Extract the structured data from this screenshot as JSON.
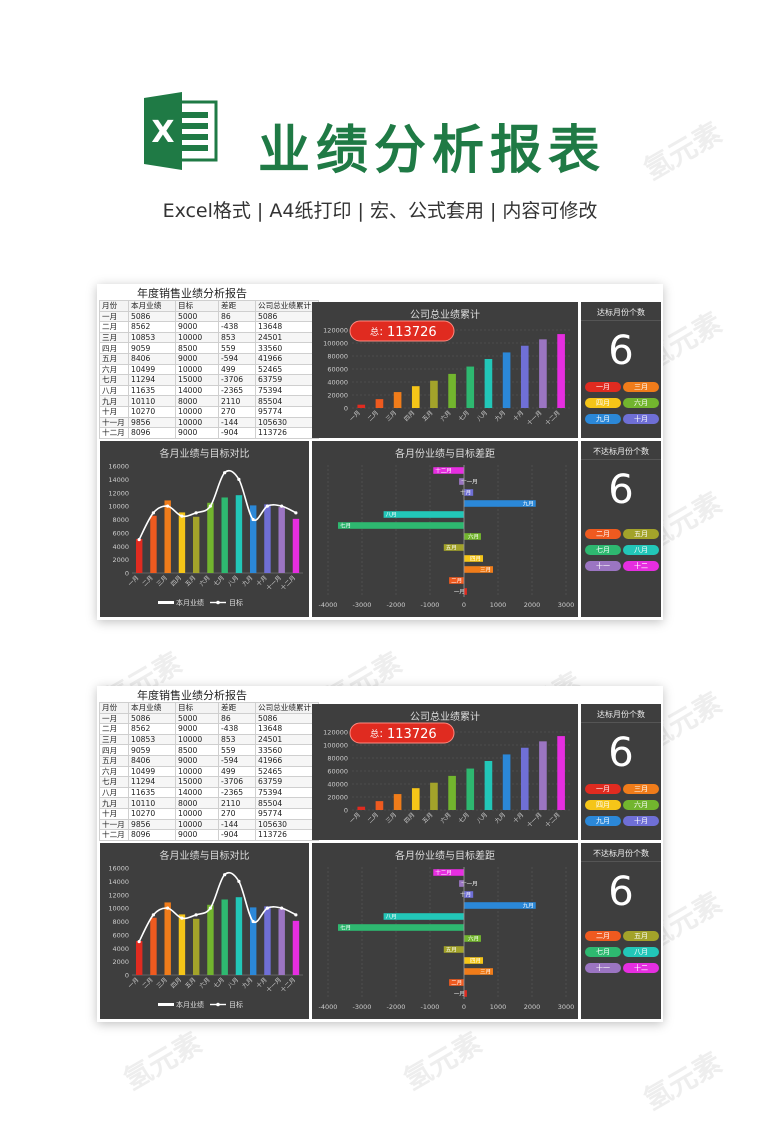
{
  "header": {
    "title": "业绩分析报表",
    "subtitle": "Excel格式 |  A4纸打印 | 宏、公式套用 | 内容可修改",
    "logo_letter": "X"
  },
  "watermark": "氢元素",
  "sheet": {
    "title": "年度销售业绩分析报告",
    "columns": [
      "月份",
      "本月业绩",
      "目标",
      "差距",
      "公司总业绩累计"
    ],
    "rows": [
      [
        "一月",
        "5086",
        "5000",
        "86",
        "5086"
      ],
      [
        "二月",
        "8562",
        "9000",
        "-438",
        "13648"
      ],
      [
        "三月",
        "10853",
        "10000",
        "853",
        "24501"
      ],
      [
        "四月",
        "9059",
        "8500",
        "559",
        "33560"
      ],
      [
        "五月",
        "8406",
        "9000",
        "-594",
        "41966"
      ],
      [
        "六月",
        "10499",
        "10000",
        "499",
        "52465"
      ],
      [
        "七月",
        "11294",
        "15000",
        "-3706",
        "63759"
      ],
      [
        "八月",
        "11635",
        "14000",
        "-2365",
        "75394"
      ],
      [
        "九月",
        "10110",
        "8000",
        "2110",
        "85504"
      ],
      [
        "十月",
        "10270",
        "10000",
        "270",
        "95774"
      ],
      [
        "十一月",
        "9856",
        "10000",
        "-144",
        "105630"
      ],
      [
        "十二月",
        "8096",
        "9000",
        "-904",
        "113726"
      ]
    ],
    "total_label": "总：",
    "total_value": "113726",
    "reached_title": "达标月份个数",
    "reached_count": "6",
    "reached_months": [
      "一月",
      "三月",
      "四月",
      "六月",
      "九月",
      "十月"
    ],
    "missed_title": "不达标月份个数",
    "missed_count": "6",
    "missed_months": [
      "二月",
      "五月",
      "七月",
      "八月",
      "十一",
      "十二"
    ]
  },
  "colors": {
    "panel": "#3e3e3e",
    "accent_green": "#1f7a45",
    "total_badge": "#e02b20",
    "months": [
      "#e02b20",
      "#ef5a1f",
      "#f07c1a",
      "#f5c518",
      "#a3a32a",
      "#72b52e",
      "#2eb870",
      "#22c7b8",
      "#2b88d8",
      "#6f6fd6",
      "#9b75c2",
      "#e62ee0"
    ]
  },
  "chart_data": [
    {
      "type": "bar",
      "title": "公司总业绩累计",
      "categories": [
        "一月",
        "二月",
        "三月",
        "四月",
        "五月",
        "六月",
        "七月",
        "八月",
        "九月",
        "十月",
        "十一月",
        "十二月"
      ],
      "values": [
        5086,
        13648,
        24501,
        33560,
        41966,
        52465,
        63759,
        75394,
        85504,
        95774,
        105630,
        113726
      ],
      "ylim": [
        0,
        120000
      ],
      "yticks": [
        "0",
        "20000",
        "40000",
        "60000",
        "80000",
        "100000",
        "120000"
      ],
      "grid": true
    },
    {
      "type": "bar",
      "title": "各月业绩与目标对比",
      "categories": [
        "一月",
        "二月",
        "三月",
        "四月",
        "五月",
        "六月",
        "七月",
        "八月",
        "九月",
        "十月",
        "十一月",
        "十二月"
      ],
      "series": [
        {
          "name": "本月业绩",
          "values": [
            5086,
            8562,
            10853,
            9059,
            8406,
            10499,
            11294,
            11635,
            10110,
            10270,
            9856,
            8096
          ]
        },
        {
          "name": "目标",
          "values": [
            5000,
            9000,
            10000,
            8500,
            9000,
            10000,
            15000,
            14000,
            8000,
            10000,
            10000,
            9000
          ]
        }
      ],
      "ylim": [
        0,
        16000
      ],
      "yticks": [
        "0",
        "2000",
        "4000",
        "6000",
        "8000",
        "10000",
        "12000",
        "14000",
        "16000"
      ],
      "legend": "bottom"
    },
    {
      "type": "bar",
      "title": "各月份业绩与目标差距",
      "categories": [
        "十二月",
        "十一月",
        "十月",
        "九月",
        "八月",
        "七月",
        "六月",
        "五月",
        "四月",
        "三月",
        "二月",
        "一月"
      ],
      "values": [
        -904,
        -144,
        270,
        2110,
        -2365,
        -3706,
        499,
        -594,
        559,
        853,
        -438,
        86
      ],
      "xlim": [
        -4000,
        3000
      ],
      "xticks": [
        "-4000",
        "-3000",
        "-2000",
        "-1000",
        "0",
        "1000",
        "2000",
        "3000"
      ],
      "orientation": "horizontal"
    }
  ]
}
